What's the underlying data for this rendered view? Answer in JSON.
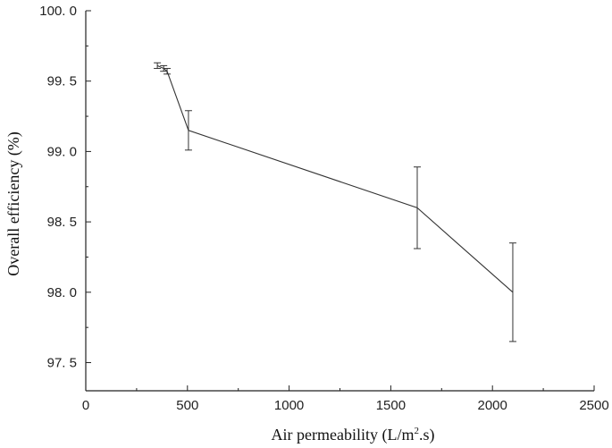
{
  "chart_data": {
    "type": "line",
    "xlabel": "Air permeability (L/m",
    "xlabel_sup": "2",
    "xlabel_suffix": ".s)",
    "ylabel": "Overall efficiency (%)",
    "xlim": [
      0,
      2500
    ],
    "ylim": [
      97.3,
      100.0
    ],
    "x_ticks": [
      0,
      500,
      1000,
      1500,
      2000,
      2500
    ],
    "x_tick_labels": [
      "0",
      "500",
      "1000",
      "1500",
      "2000",
      "2500"
    ],
    "y_ticks": [
      97.5,
      98.0,
      98.5,
      99.0,
      99.5,
      100.0
    ],
    "y_tick_labels": [
      "97. 5",
      "98. 0",
      "98. 5",
      "99. 0",
      "99. 5",
      "100. 0"
    ],
    "grid": false,
    "series": [
      {
        "x": [
          352,
          383,
          400,
          505,
          1630,
          2100
        ],
        "y": [
          99.61,
          99.59,
          99.57,
          99.15,
          98.6,
          98.0
        ],
        "error": [
          0.02,
          0.02,
          0.02,
          0.14,
          0.29,
          0.35
        ]
      }
    ]
  }
}
